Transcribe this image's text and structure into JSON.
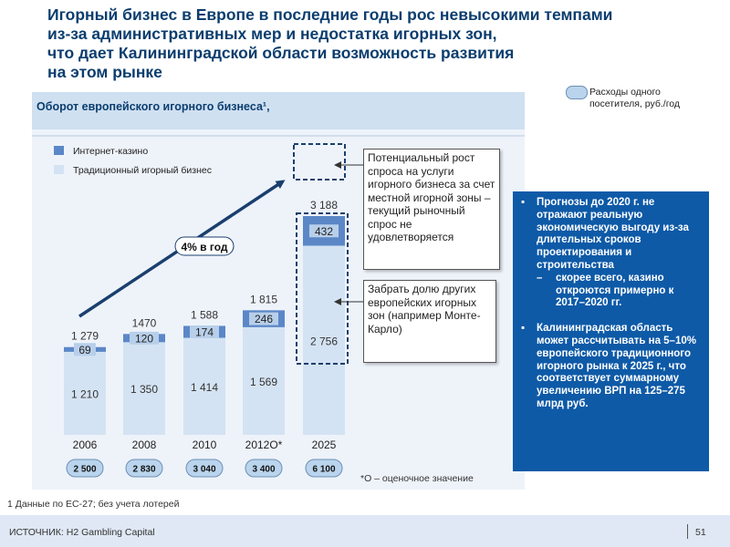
{
  "title_lines": [
    "Игорный бизнес в Европе в последние годы рос невысокими темпами",
    "из-за административных мер и недостатка игорных зон,",
    "что дает Калининградской области возможность развития",
    "на этом рынке"
  ],
  "colors": {
    "title": "#0b3d6e",
    "internet": "#5b87c7",
    "traditional": "#d4e3f3",
    "arrow": "#1a3f6e",
    "blue_box": "#0e5aa7",
    "panel_header": "#cfe0f1"
  },
  "chart_data": {
    "type": "bar",
    "stacked": true,
    "title": "Оборот европейского игорного бизнеса¹,",
    "categories": [
      "2006",
      "2008",
      "2010",
      "2012O*",
      "2025"
    ],
    "series": [
      {
        "name": "Традиционный  игорный бизнес",
        "values": [
          1210,
          1350,
          1414,
          1569,
          2756
        ]
      },
      {
        "name": "Интернет-казино",
        "values": [
          69,
          120,
          174,
          246,
          432
        ]
      }
    ],
    "totals": [
      "1 279",
      "1470",
      "1 588",
      "1 815",
      "3 188"
    ],
    "trad_labels": [
      "1 210",
      "1 350",
      "1 414",
      "1 569",
      "2 756"
    ],
    "internet_labels": [
      "69",
      "120",
      "174",
      "246",
      "432"
    ],
    "spend_per_visitor": [
      "2 500",
      "2 830",
      "3 040",
      "3 400",
      "6 100"
    ],
    "growth_label": "4% в год",
    "footnote_estimate": "*О – оценочное значение",
    "ylim": [
      0,
      3600
    ],
    "legend_position": "top-left"
  },
  "legend_spend": "Расходы одного посетителя,  руб./год",
  "annotation_growth": "Потенциальный рост спроса на услуги игорного бизнеса за счет местной игорной зоны – текущий  рыночный спрос не удовлетворяется",
  "annotation_share": "Забрать долю других европейских игорных зон (например Монте-Карло)",
  "blue_box": {
    "p1": "Прогнозы до 2020 г. не отражают реальную экономическую выгоду из-за длительных сроков проектирования и строительства",
    "dash": "–",
    "sub": "скорее всего, казино откроются примерно к 2017–2020 гг.",
    "p2": "Калининградская область может рассчитывать на 5–10% европейского традиционного игорного рынка к 2025 г., что соответствует суммарному увеличению ВРП на 125–275 млрд руб.",
    "bullet": "▪"
  },
  "footnote": "1 Данные  по ЕС-27;  без учета лотерей",
  "source": "ИСТОЧНИК:  H2 Gambling Capital",
  "page_number": "51"
}
